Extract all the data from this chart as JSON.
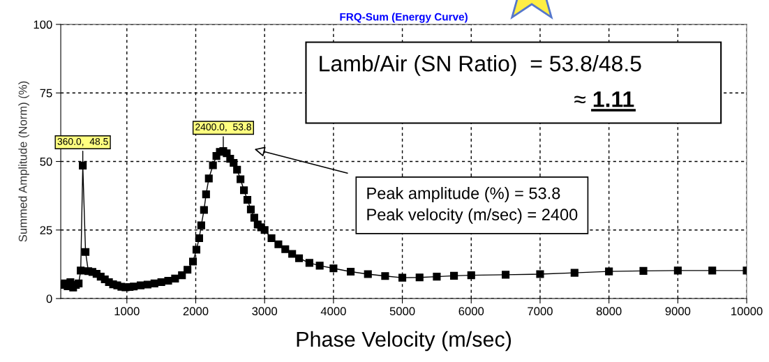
{
  "chart_data": {
    "type": "line",
    "title": "FRQ-Sum (Energy Curve)",
    "xlabel": "Phase Velocity (m/sec)",
    "ylabel": "Summed Amplitude (Norm) (%)",
    "series": [
      {
        "color": "#000000",
        "x": [
          60,
          100,
          140,
          180,
          220,
          260,
          300,
          330,
          360,
          400,
          440,
          500,
          560,
          620,
          680,
          740,
          800,
          860,
          920,
          980,
          1040,
          1100,
          1200,
          1300,
          1400,
          1500,
          1600,
          1700,
          1800,
          1880,
          1960,
          2010,
          2050,
          2080,
          2120,
          2150,
          2190,
          2250,
          2300,
          2350,
          2400,
          2450,
          2500,
          2550,
          2600,
          2650,
          2700,
          2750,
          2800,
          2850,
          2900,
          2950,
          3000,
          3100,
          3200,
          3300,
          3400,
          3500,
          3650,
          3800,
          4000,
          4250,
          4500,
          4750,
          5000,
          5250,
          5500,
          5750,
          6000,
          6500,
          7000,
          7500,
          8000,
          8500,
          9000,
          9500,
          10000
        ],
        "values": [
          5,
          5.5,
          4.5,
          6,
          4,
          5,
          5.5,
          10.2,
          48.5,
          17,
          10,
          9.7,
          9,
          8,
          7,
          6,
          5.2,
          4.8,
          4.3,
          4.1,
          4.2,
          4.4,
          4.8,
          5.1,
          5.5,
          6,
          6.5,
          7.3,
          8.5,
          10.5,
          13.5,
          17.8,
          22,
          26.7,
          32.3,
          38,
          43.8,
          48.6,
          52,
          53.5,
          53.8,
          53,
          51,
          49.5,
          47,
          43.5,
          39.5,
          36,
          32.5,
          29.5,
          27,
          26,
          25,
          22,
          19.8,
          18,
          16.3,
          14.7,
          13,
          12,
          11,
          9.8,
          8.9,
          8.2,
          7.6,
          7.7,
          8,
          8.3,
          8.5,
          8.7,
          8.9,
          9.4,
          9.9,
          10.1,
          10.2,
          10.2,
          10.2
        ]
      }
    ],
    "xlim": [
      40,
      10000
    ],
    "ylim": [
      0,
      100
    ],
    "xticks": [
      1000,
      2000,
      3000,
      4000,
      5000,
      6000,
      7000,
      8000,
      9000,
      10000
    ],
    "yticks": [
      0,
      25,
      50,
      75,
      100
    ],
    "grid": true,
    "marker": "square",
    "line_style": "solid",
    "annotations": [
      {
        "text": "360.0,  48.5",
        "x": 360,
        "y": 48.5
      },
      {
        "text": "2400.0,  53.8",
        "x": 2400,
        "y": 53.8
      },
      "Lamb/Air (SN Ratio)  = 53.8/48.5",
      "≈ 1.11",
      "Peak amplitude (%) = 53.8\nPeak velocity (m/sec) = 2400"
    ]
  }
}
